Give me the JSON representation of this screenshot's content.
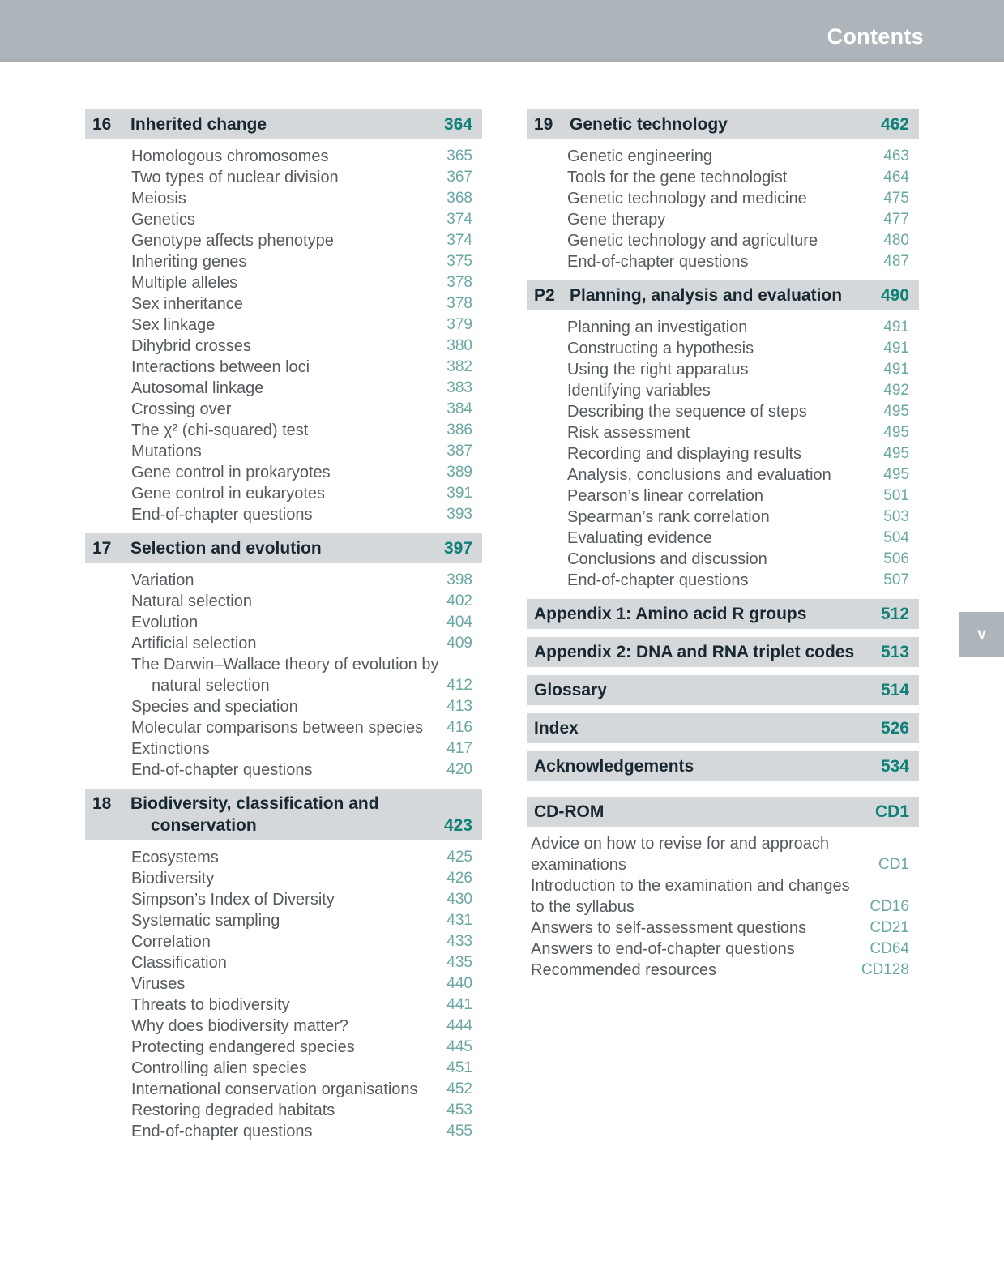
{
  "page": {
    "header_title": "Contents",
    "page_number_tab": "v"
  },
  "colors": {
    "top_bar": "#aeb5ba",
    "section_bar": "#d4d8da",
    "heading_text": "#182730",
    "heading_page_number": "#0f8077",
    "entry_text": "#555a5e",
    "entry_page_number": "#6aa7a3",
    "header_title_text": "#ffffff"
  },
  "sections": [
    {
      "column": "left",
      "number": "16",
      "title_lines": [
        "Inherited change"
      ],
      "page": "364",
      "items": [
        {
          "lines": [
            "Homologous chromosomes"
          ],
          "page": "365"
        },
        {
          "lines": [
            "Two types of nuclear division"
          ],
          "page": "367"
        },
        {
          "lines": [
            "Meiosis"
          ],
          "page": "368"
        },
        {
          "lines": [
            "Genetics"
          ],
          "page": "374"
        },
        {
          "lines": [
            "Genotype affects phenotype"
          ],
          "page": "374"
        },
        {
          "lines": [
            "Inheriting genes"
          ],
          "page": "375"
        },
        {
          "lines": [
            "Multiple alleles"
          ],
          "page": "378"
        },
        {
          "lines": [
            "Sex inheritance"
          ],
          "page": "378"
        },
        {
          "lines": [
            "Sex linkage"
          ],
          "page": "379"
        },
        {
          "lines": [
            "Dihybrid crosses"
          ],
          "page": "380"
        },
        {
          "lines": [
            "Interactions between loci"
          ],
          "page": "382"
        },
        {
          "lines": [
            "Autosomal linkage"
          ],
          "page": "383"
        },
        {
          "lines": [
            "Crossing over"
          ],
          "page": "384"
        },
        {
          "lines": [
            "The χ² (chi-squared) test"
          ],
          "page": "386"
        },
        {
          "lines": [
            "Mutations"
          ],
          "page": "387"
        },
        {
          "lines": [
            "Gene control in prokaryotes"
          ],
          "page": "389"
        },
        {
          "lines": [
            "Gene control in eukaryotes"
          ],
          "page": "391"
        },
        {
          "lines": [
            "End-of-chapter questions"
          ],
          "page": "393"
        }
      ]
    },
    {
      "column": "left",
      "number": "17",
      "title_lines": [
        "Selection and evolution"
      ],
      "page": "397",
      "items": [
        {
          "lines": [
            "Variation"
          ],
          "page": "398"
        },
        {
          "lines": [
            "Natural selection"
          ],
          "page": "402"
        },
        {
          "lines": [
            "Evolution"
          ],
          "page": "404"
        },
        {
          "lines": [
            "Artificial selection"
          ],
          "page": "409"
        },
        {
          "lines": [
            "The Darwin–Wallace theory of evolution by",
            "natural selection"
          ],
          "page": "412",
          "indent2": true
        },
        {
          "lines": [
            "Species and speciation"
          ],
          "page": "413"
        },
        {
          "lines": [
            "Molecular comparisons between species"
          ],
          "page": "416"
        },
        {
          "lines": [
            "Extinctions"
          ],
          "page": "417"
        },
        {
          "lines": [
            "End-of-chapter questions"
          ],
          "page": "420"
        }
      ]
    },
    {
      "column": "left",
      "number": "18",
      "title_lines": [
        "Biodiversity, classification and",
        "conservation"
      ],
      "page": "423",
      "items": [
        {
          "lines": [
            "Ecosystems"
          ],
          "page": "425"
        },
        {
          "lines": [
            "Biodiversity"
          ],
          "page": "426"
        },
        {
          "lines": [
            "Simpson’s Index of Diversity"
          ],
          "page": "430"
        },
        {
          "lines": [
            "Systematic sampling"
          ],
          "page": "431"
        },
        {
          "lines": [
            "Correlation"
          ],
          "page": "433"
        },
        {
          "lines": [
            "Classification"
          ],
          "page": "435"
        },
        {
          "lines": [
            "Viruses"
          ],
          "page": "440"
        },
        {
          "lines": [
            "Threats to biodiversity"
          ],
          "page": "441"
        },
        {
          "lines": [
            "Why does biodiversity matter?"
          ],
          "page": "444"
        },
        {
          "lines": [
            "Protecting endangered species"
          ],
          "page": "445"
        },
        {
          "lines": [
            "Controlling alien species"
          ],
          "page": "451"
        },
        {
          "lines": [
            "International conservation organisations"
          ],
          "page": "452"
        },
        {
          "lines": [
            "Restoring degraded habitats"
          ],
          "page": "453"
        },
        {
          "lines": [
            "End-of-chapter questions"
          ],
          "page": "455"
        }
      ]
    },
    {
      "column": "right",
      "number": "19",
      "title_lines": [
        "Genetic technology"
      ],
      "page": "462",
      "items": [
        {
          "lines": [
            "Genetic engineering"
          ],
          "page": "463"
        },
        {
          "lines": [
            "Tools for the gene technologist"
          ],
          "page": "464"
        },
        {
          "lines": [
            "Genetic technology and medicine"
          ],
          "page": "475"
        },
        {
          "lines": [
            "Gene therapy"
          ],
          "page": "477"
        },
        {
          "lines": [
            "Genetic technology and agriculture"
          ],
          "page": "480"
        },
        {
          "lines": [
            "End-of-chapter questions"
          ],
          "page": "487"
        }
      ]
    },
    {
      "column": "right",
      "number": "P2",
      "title_lines": [
        "Planning, analysis and evaluation"
      ],
      "page": "490",
      "items": [
        {
          "lines": [
            "Planning an investigation"
          ],
          "page": "491"
        },
        {
          "lines": [
            "Constructing a hypothesis"
          ],
          "page": "491"
        },
        {
          "lines": [
            "Using the right apparatus"
          ],
          "page": "491"
        },
        {
          "lines": [
            "Identifying variables"
          ],
          "page": "492"
        },
        {
          "lines": [
            "Describing the sequence of steps"
          ],
          "page": "495"
        },
        {
          "lines": [
            "Risk assessment"
          ],
          "page": "495"
        },
        {
          "lines": [
            "Recording and displaying results"
          ],
          "page": "495"
        },
        {
          "lines": [
            "Analysis, conclusions and evaluation"
          ],
          "page": "495"
        },
        {
          "lines": [
            "Pearson’s linear correlation"
          ],
          "page": "501"
        },
        {
          "lines": [
            "Spearman’s rank correlation"
          ],
          "page": "503"
        },
        {
          "lines": [
            "Evaluating evidence"
          ],
          "page": "504"
        },
        {
          "lines": [
            "Conclusions and discussion"
          ],
          "page": "506"
        },
        {
          "lines": [
            "End-of-chapter questions"
          ],
          "page": "507"
        }
      ]
    },
    {
      "column": "right",
      "number": "",
      "title_lines": [
        "Appendix 1: Amino acid R groups"
      ],
      "page": "512",
      "items": []
    },
    {
      "column": "right",
      "number": "",
      "title_lines": [
        "Appendix 2: DNA and RNA triplet codes"
      ],
      "page": "513",
      "items": []
    },
    {
      "column": "right",
      "number": "",
      "title_lines": [
        "Glossary"
      ],
      "page": "514",
      "items": []
    },
    {
      "column": "right",
      "number": "",
      "title_lines": [
        "Index"
      ],
      "page": "526",
      "items": []
    },
    {
      "column": "right",
      "number": "",
      "title_lines": [
        "Acknowledgements"
      ],
      "page": "534",
      "items": []
    },
    {
      "column": "right",
      "number": "",
      "title_lines": [
        "CD-ROM"
      ],
      "page": "CD1",
      "items_flush": true,
      "items": [
        {
          "lines": [
            "Advice on how to revise for and approach",
            "examinations"
          ],
          "page": "CD1"
        },
        {
          "lines": [
            "Introduction to the examination and changes",
            "to the syllabus"
          ],
          "page": "CD16"
        },
        {
          "lines": [
            "Answers to self-assessment questions"
          ],
          "page": "CD21"
        },
        {
          "lines": [
            "Answers to end-of-chapter questions"
          ],
          "page": "CD64"
        },
        {
          "lines": [
            "Recommended resources"
          ],
          "page": "CD128"
        }
      ]
    }
  ]
}
